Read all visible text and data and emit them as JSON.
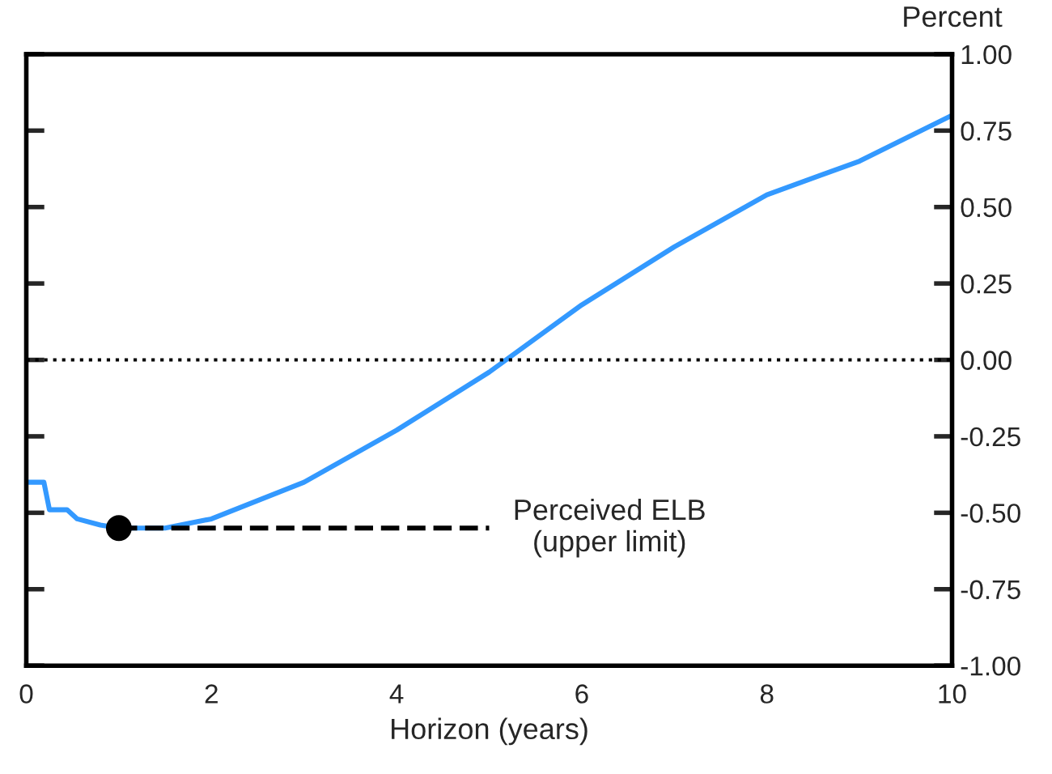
{
  "chart_data": {
    "type": "line",
    "xlabel": "Horizon (years)",
    "ylabel": "Percent",
    "xlim": [
      0,
      10
    ],
    "xticks": [
      0,
      2,
      4,
      6,
      8,
      10
    ],
    "ylim": [
      -1,
      1
    ],
    "yticks": [
      {
        "value": -1,
        "label": "-1.00"
      },
      {
        "value": -0.75,
        "label": "-0.75"
      },
      {
        "value": -0.5,
        "label": "-0.50"
      },
      {
        "value": -0.25,
        "label": "-0.25"
      },
      {
        "value": 0,
        "label": "0.00"
      },
      {
        "value": 0.25,
        "label": "0.25"
      },
      {
        "value": 0.5,
        "label": "0.50"
      },
      {
        "value": 0.75,
        "label": "0.75"
      },
      {
        "value": 1,
        "label": "1.00"
      }
    ],
    "grid": false,
    "legend": false,
    "series": [
      {
        "color": "#3399ff",
        "line_style": "solid",
        "x": [
          0,
          0.19,
          0.25,
          0.44,
          0.55,
          0.8,
          1,
          1.5,
          2,
          3,
          4,
          5,
          6,
          7,
          8,
          9,
          10
        ],
        "values": [
          -0.4,
          -0.4,
          -0.49,
          -0.49,
          -0.52,
          -0.54,
          -0.55,
          -0.55,
          -0.52,
          -0.4,
          -0.23,
          -0.04,
          0.18,
          0.37,
          0.54,
          0.65,
          0.8
        ]
      },
      {
        "type": "line",
        "color": "#000000",
        "line_style": "dashed",
        "x": [
          1,
          5
        ],
        "values": [
          -0.55,
          -0.55
        ]
      },
      {
        "type": "scatter",
        "color": "#000000",
        "marker": "circle",
        "x": [
          1
        ],
        "values": [
          -0.55
        ]
      }
    ],
    "ref_lines": [
      {
        "axis": "y",
        "value": 0,
        "color": "#000000",
        "line_style": "dotted"
      }
    ],
    "annotations": [
      "Perceived ELB\n(upper limit)"
    ]
  }
}
